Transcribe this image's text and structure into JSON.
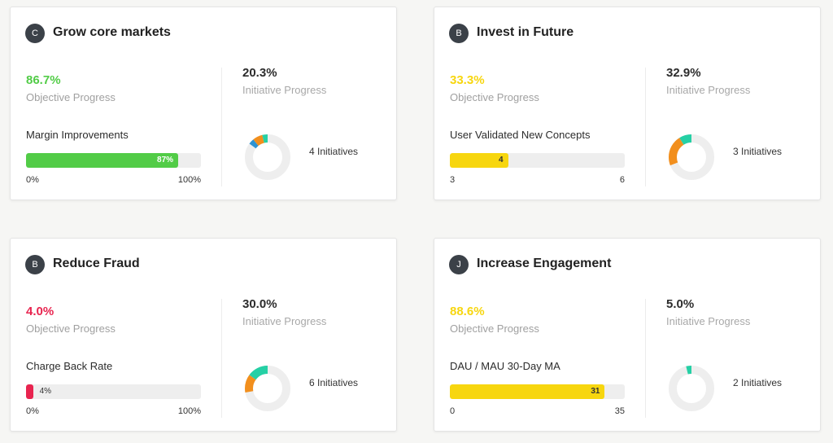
{
  "colors": {
    "green": "#52cc47",
    "yellow": "#f7d60f",
    "red": "#e8244f",
    "orange": "#f28f1d",
    "teal": "#25d0a5",
    "blue": "#2d93d3",
    "track": "#eeeeee"
  },
  "objectives": [
    {
      "badge": "C",
      "title": "Grow core markets",
      "objective_progress": "86.7%",
      "objective_progress_label": "Objective Progress",
      "progress_color": "#52cc47",
      "key_result": {
        "label": "Margin Improvements",
        "fill_percent": 87,
        "bar_text": "87%",
        "min_label": "0%",
        "max_label": "100%",
        "fill_color": "#52cc47"
      },
      "initiative_progress": "20.3%",
      "initiative_progress_label": "Initiative Progress",
      "initiatives_count": "4 Initiatives",
      "donut_segments": [
        {
          "color": "#2d93d3",
          "percent": 4
        },
        {
          "color": "#f28f1d",
          "percent": 7
        },
        {
          "color": "#25d0a5",
          "percent": 4
        }
      ]
    },
    {
      "badge": "B",
      "title": "Invest in Future",
      "objective_progress": "33.3%",
      "objective_progress_label": "Objective Progress",
      "progress_color": "#f7d60f",
      "key_result": {
        "label": "User Validated New Concepts",
        "fill_percent": 33.3,
        "bar_text": "4",
        "min_label": "3",
        "max_label": "6",
        "fill_color": "#f7d60f"
      },
      "initiative_progress": "32.9%",
      "initiative_progress_label": "Initiative Progress",
      "initiatives_count": "3 Initiatives",
      "donut_segments": [
        {
          "color": "#f28f1d",
          "percent": 22
        },
        {
          "color": "#25d0a5",
          "percent": 9
        }
      ]
    },
    {
      "badge": "B",
      "title": "Reduce Fraud",
      "objective_progress": "4.0%",
      "objective_progress_label": "Objective Progress",
      "progress_color": "#e8244f",
      "key_result": {
        "label": "Charge Back Rate",
        "fill_percent": 4,
        "bar_text": "4%",
        "min_label": "0%",
        "max_label": "100%",
        "fill_color": "#e8244f"
      },
      "initiative_progress": "30.0%",
      "initiative_progress_label": "Initiative Progress",
      "initiatives_count": "6 Initiatives",
      "donut_segments": [
        {
          "color": "#f28f1d",
          "percent": 13
        },
        {
          "color": "#25d0a5",
          "percent": 15
        }
      ]
    },
    {
      "badge": "J",
      "title": "Increase Engagement",
      "objective_progress": "88.6%",
      "objective_progress_label": "Objective Progress",
      "progress_color": "#f7d60f",
      "key_result": {
        "label": "DAU / MAU 30-Day MA",
        "fill_percent": 88.6,
        "bar_text": "31",
        "min_label": "0",
        "max_label": "35",
        "fill_color": "#f7d60f"
      },
      "initiative_progress": "5.0%",
      "initiative_progress_label": "Initiative Progress",
      "initiatives_count": "2 Initiatives",
      "donut_segments": [
        {
          "color": "#25d0a5",
          "percent": 4
        }
      ]
    }
  ]
}
